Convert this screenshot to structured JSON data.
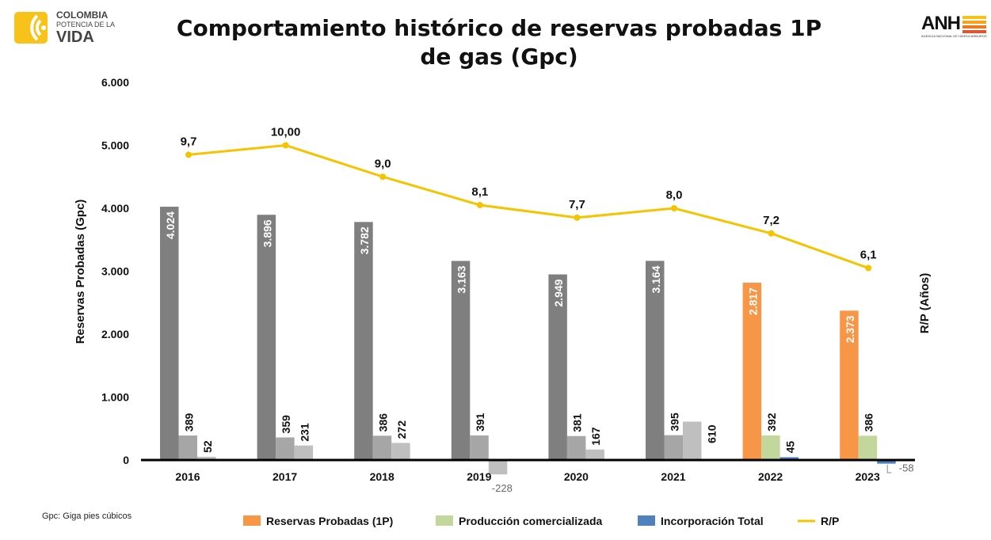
{
  "title": "Comportamiento histórico de reservas probadas 1P de gas (Gpc)",
  "logos": {
    "left": {
      "line1": "COLOMBIA",
      "line2": "POTENCIA DE LA",
      "line3": "VIDA"
    },
    "right": {
      "text": "ANH",
      "sub": "AGENCIA NACIONAL DE HIDROCARBUROS"
    }
  },
  "footnote": "Gpc: Giga pies cúbicos",
  "chart_data": {
    "type": "bar",
    "ylabel": "Reservas Probadas (Gpc)",
    "y2label": "R/P (Años)",
    "ylim": [
      0,
      6000
    ],
    "yticks": [
      "0",
      "1.000",
      "2.000",
      "3.000",
      "4.000",
      "5.000",
      "6.000"
    ],
    "y2lim": [
      0,
      12
    ],
    "categories": [
      "2016",
      "2017",
      "2018",
      "2019",
      "2020",
      "2021",
      "2022",
      "2023"
    ],
    "series": [
      {
        "name": "Reservas Probadas (1P)",
        "values": [
          4024,
          3896,
          3782,
          3163,
          2949,
          3164,
          2817,
          2373
        ],
        "labels": [
          "4.024",
          "3.896",
          "3.782",
          "3.163",
          "2.949",
          "3.164",
          "2.817",
          "2.373"
        ],
        "colors": [
          "#7f7f7f",
          "#7f7f7f",
          "#7f7f7f",
          "#7f7f7f",
          "#7f7f7f",
          "#7f7f7f",
          "#f79646",
          "#f79646"
        ]
      },
      {
        "name": "Producción comercializada",
        "values": [
          389,
          359,
          386,
          391,
          381,
          395,
          392,
          386
        ],
        "labels": [
          "389",
          "359",
          "386",
          "391",
          "381",
          "395",
          "392",
          "386"
        ],
        "colors": [
          "#a6a6a6",
          "#a6a6a6",
          "#a6a6a6",
          "#a6a6a6",
          "#a6a6a6",
          "#a6a6a6",
          "#c3d69b",
          "#c3d69b"
        ]
      },
      {
        "name": "Incorporación Total",
        "values": [
          52,
          231,
          272,
          -228,
          167,
          610,
          45,
          -58
        ],
        "labels": [
          "52",
          "231",
          "272",
          "-228",
          "167",
          "610",
          "45",
          "-58"
        ],
        "colors": [
          "#bfbfbf",
          "#bfbfbf",
          "#bfbfbf",
          "#bfbfbf",
          "#bfbfbf",
          "#bfbfbf",
          "#4f81bd",
          "#4f81bd"
        ]
      },
      {
        "name": "R/P",
        "type": "line",
        "axis": "right",
        "values": [
          9.7,
          10.0,
          9.0,
          8.1,
          7.7,
          8.0,
          7.2,
          6.1
        ],
        "labels": [
          "9,7",
          "10,00",
          "9,0",
          "8,1",
          "7,7",
          "8,0",
          "7,2",
          "6,1"
        ],
        "color": "#f5c400"
      }
    ],
    "legend": "bottom",
    "grid": false
  }
}
